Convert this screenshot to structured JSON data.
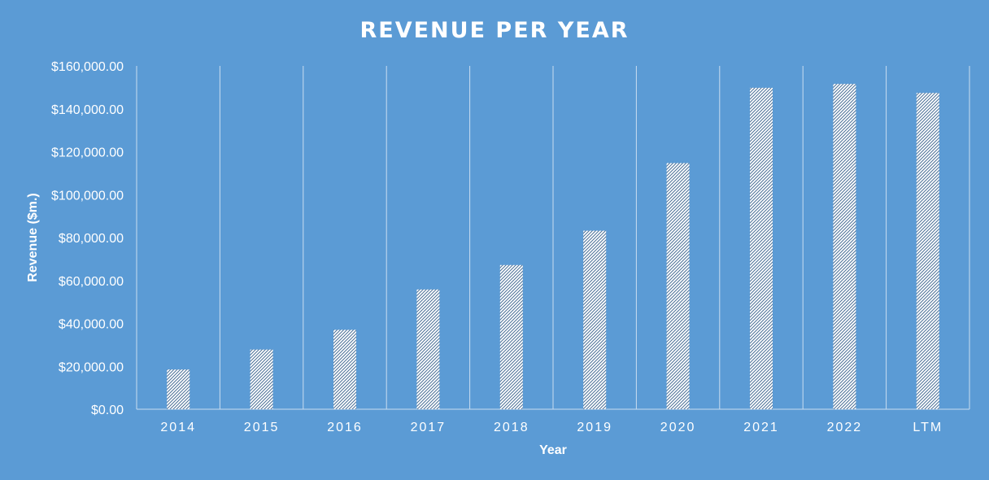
{
  "chart_data": {
    "type": "bar",
    "title": "REVENUE PER YEAR",
    "xlabel": "Year",
    "ylabel": "Revenue ($m.)",
    "categories": [
      "2014",
      "2015",
      "2016",
      "2017",
      "2018",
      "2019",
      "2020",
      "2021",
      "2022",
      "LTM"
    ],
    "values": [
      18500,
      27800,
      37000,
      55800,
      67200,
      83200,
      114700,
      149800,
      151600,
      147400
    ],
    "ylim": [
      0,
      160000
    ],
    "y_ticks": [
      0,
      20000,
      40000,
      60000,
      80000,
      100000,
      120000,
      140000,
      160000
    ],
    "y_tick_labels": [
      "$0.00",
      "$20,000.00",
      "$40,000.00",
      "$60,000.00",
      "$80,000.00",
      "$100,000.00",
      "$120,000.00",
      "$140,000.00",
      "$160,000.00"
    ],
    "grid": "vertical category separators",
    "legend": "none",
    "colors": {
      "background": "#5b9bd5",
      "bar_fill": "#ffffff",
      "bar_hatch": "#4a6f96",
      "grid": "#c9ddf0",
      "text": "#ffffff"
    }
  }
}
